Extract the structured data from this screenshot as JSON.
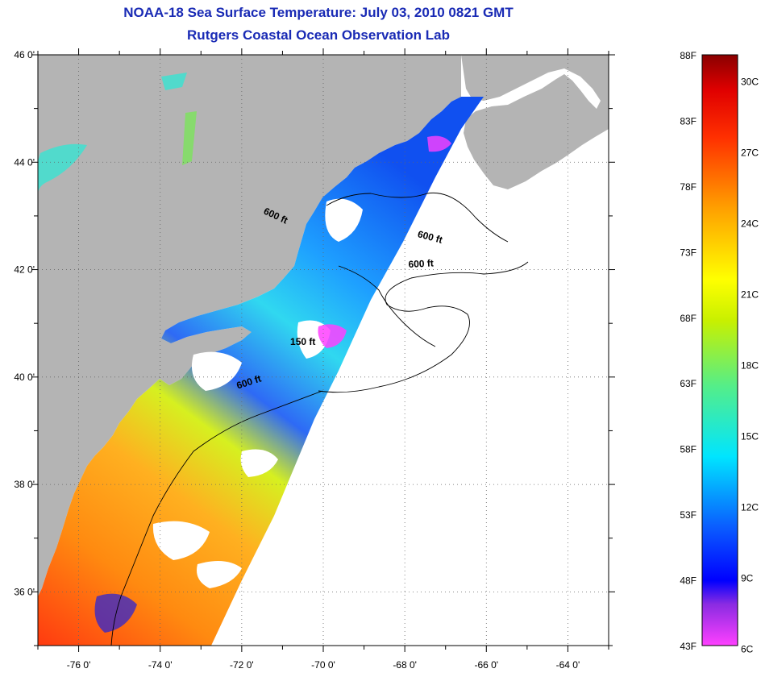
{
  "header": {
    "title": "NOAA-18 Sea Surface Temperature:  July 03, 2010 0821 GMT",
    "subtitle": "Rutgers Coastal Ocean Observation Lab"
  },
  "map": {
    "lon_range": [
      -77,
      -63
    ],
    "lat_range": [
      35,
      46
    ],
    "lat_labels": [
      {
        "v": 46,
        "text": "46 0'"
      },
      {
        "v": 44,
        "text": "44 0'"
      },
      {
        "v": 42,
        "text": "42 0'"
      },
      {
        "v": 40,
        "text": "40 0'"
      },
      {
        "v": 38,
        "text": "38 0'"
      },
      {
        "v": 36,
        "text": "36 0'"
      }
    ],
    "lon_labels": [
      {
        "v": -76,
        "text": "-76 0'"
      },
      {
        "v": -74,
        "text": "-74 0'"
      },
      {
        "v": -72,
        "text": "-72 0'"
      },
      {
        "v": -70,
        "text": "-70 0'"
      },
      {
        "v": -68,
        "text": "-68 0'"
      },
      {
        "v": -66,
        "text": "-66 0'"
      },
      {
        "v": -64,
        "text": "-64 0'"
      }
    ],
    "contour_labels": [
      {
        "text": "600 ft",
        "lon": -71.2,
        "lat": 42.95,
        "rot": 25
      },
      {
        "text": "600 ft",
        "lon": -67.4,
        "lat": 42.55,
        "rot": 15
      },
      {
        "text": "600 ft",
        "lon": -67.6,
        "lat": 42.05,
        "rot": -3
      },
      {
        "text": "150 ft",
        "lon": -70.5,
        "lat": 40.6,
        "rot": 0
      },
      {
        "text": "600 ft",
        "lon": -71.8,
        "lat": 39.85,
        "rot": -18
      }
    ],
    "colors": {
      "land": "#b4b4b4",
      "cloud": "#ffffff",
      "water_cold": "#1e6ef0",
      "water_warm": "#f59a1e"
    }
  },
  "colorbar": {
    "f_labels": [
      {
        "v": 88,
        "text": "88F"
      },
      {
        "v": 83,
        "text": "83F"
      },
      {
        "v": 78,
        "text": "78F"
      },
      {
        "v": 73,
        "text": "73F"
      },
      {
        "v": 68,
        "text": "68F"
      },
      {
        "v": 63,
        "text": "63F"
      },
      {
        "v": 58,
        "text": "58F"
      },
      {
        "v": 53,
        "text": "53F"
      },
      {
        "v": 48,
        "text": "48F"
      },
      {
        "v": 43,
        "text": "43F"
      }
    ],
    "c_labels": [
      {
        "v": 30,
        "text": "30C"
      },
      {
        "v": 27,
        "text": "27C"
      },
      {
        "v": 24,
        "text": "24C"
      },
      {
        "v": 21,
        "text": "21C"
      },
      {
        "v": 18,
        "text": "18C"
      },
      {
        "v": 15,
        "text": "15C"
      },
      {
        "v": 12,
        "text": "12C"
      },
      {
        "v": 9,
        "text": "9C"
      },
      {
        "v": 6,
        "text": "6C"
      }
    ],
    "f_range": [
      43,
      88
    ]
  }
}
